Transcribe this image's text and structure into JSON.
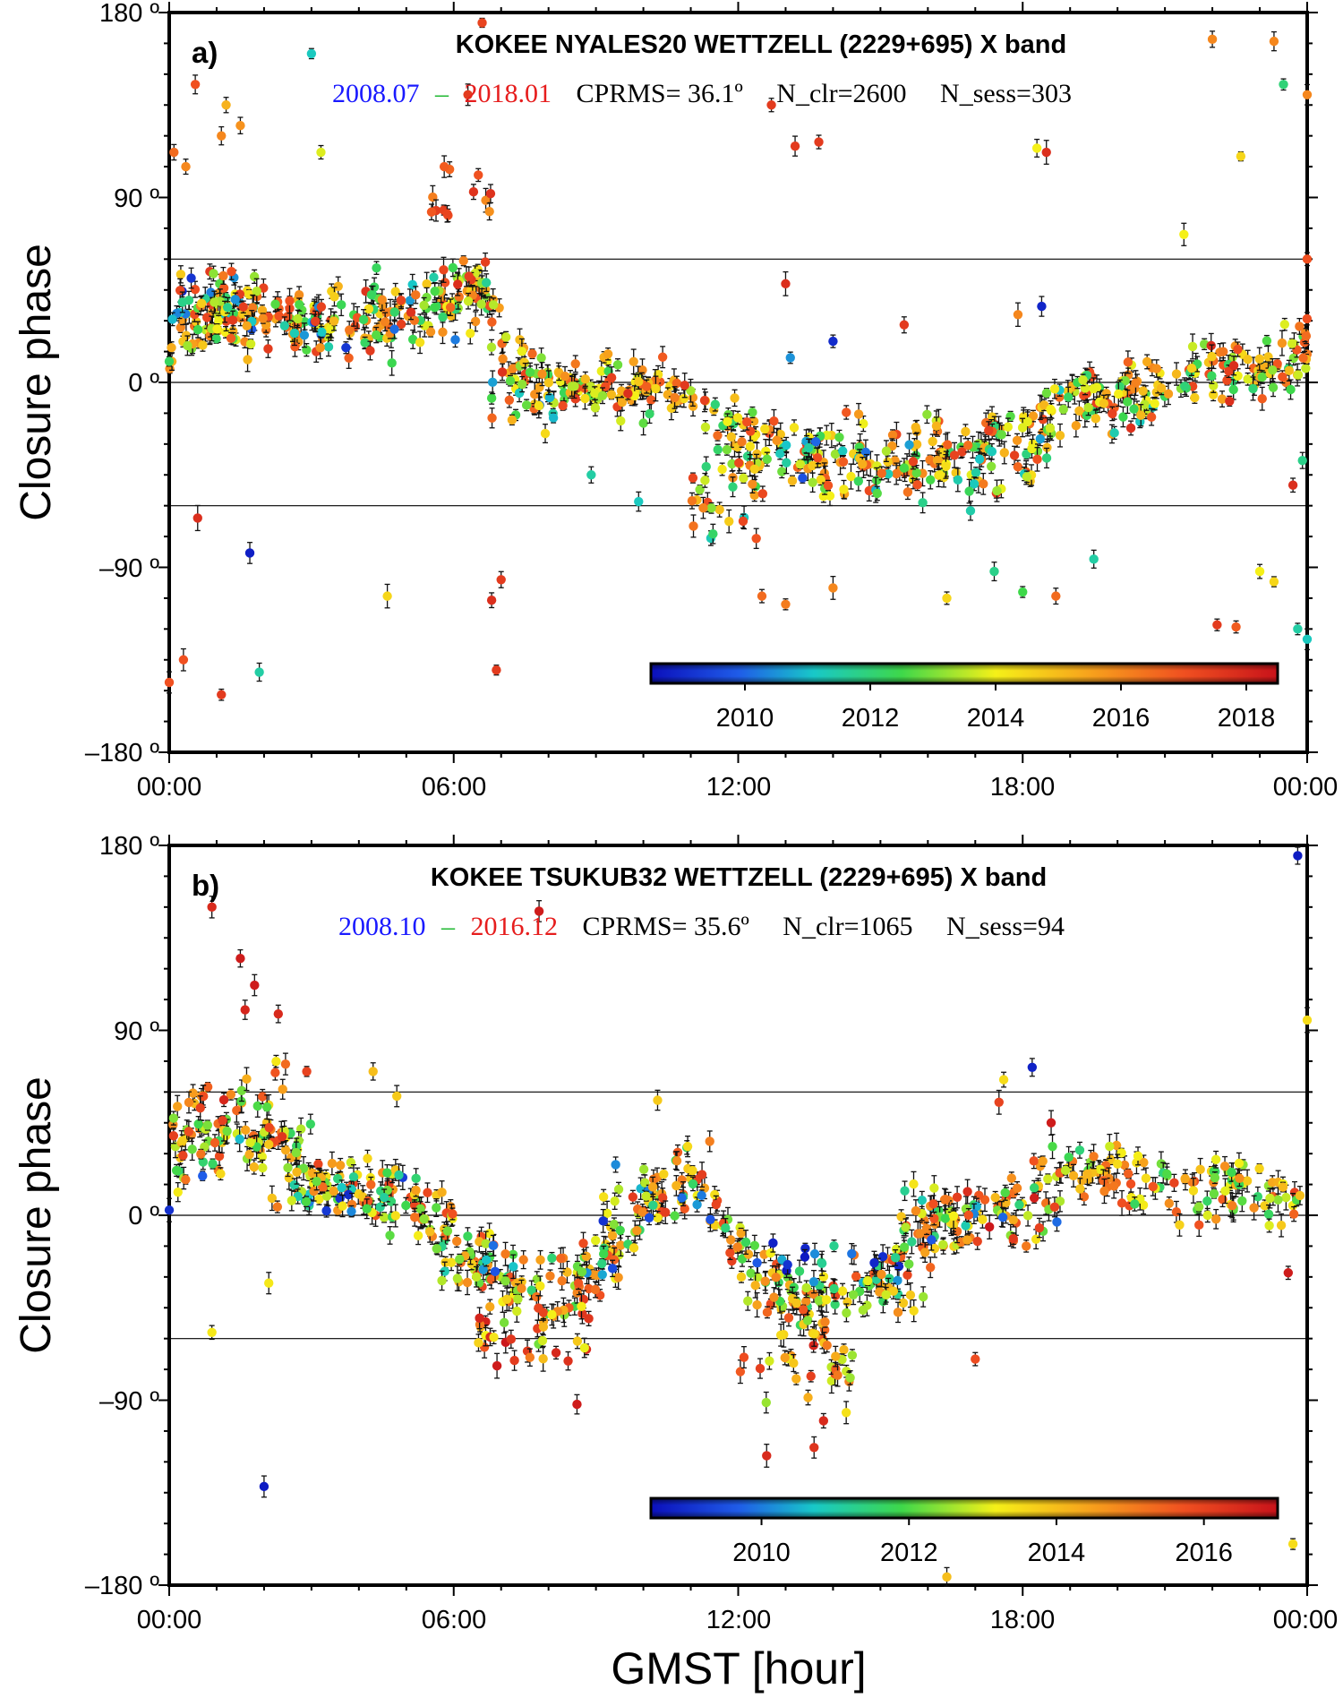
{
  "chart_data": [
    {
      "type": "scatter",
      "panel_label": "a)",
      "title": "KOKEE  NYALES20 WETTZELL (2229+695) X band",
      "date_start": "2008.07",
      "date_dash": "–",
      "date_end": "2018.01",
      "stats": {
        "cprms": "CPRMS= 36.1º",
        "n_clr": "N_clr=2600",
        "n_sess": "N_sess=303"
      },
      "ylabel": "Closure phase",
      "xlabel": "",
      "xlim": [
        0,
        24
      ],
      "ylim": [
        -180,
        180
      ],
      "x_ticks": [
        "00:00",
        "06:00",
        "12:00",
        "18:00",
        "00:00"
      ],
      "y_ticks": [
        "180 º",
        "90 º",
        "0 º",
        "–90 º",
        "–180 º"
      ],
      "reference_lines": [
        60,
        0,
        -60
      ],
      "colorbar": {
        "range": [
          2008.5,
          2018.5
        ],
        "ticks": [
          "2010",
          "2012",
          "2014",
          "2016",
          "2018"
        ],
        "tick_values": [
          2010,
          2012,
          2014,
          2016,
          2018
        ]
      },
      "trend": [
        [
          0,
          22
        ],
        [
          1,
          32
        ],
        [
          2,
          33
        ],
        [
          3,
          30
        ],
        [
          4,
          26
        ],
        [
          5,
          28
        ],
        [
          6,
          40
        ],
        [
          6.6,
          45
        ],
        [
          7,
          24
        ],
        [
          7.5,
          6
        ],
        [
          8,
          -6
        ],
        [
          9,
          -4
        ],
        [
          10,
          -2
        ],
        [
          10.5,
          -4
        ],
        [
          11,
          -12
        ],
        [
          11.5,
          -24
        ],
        [
          12,
          -30
        ],
        [
          13,
          -34
        ],
        [
          14,
          -36
        ],
        [
          15,
          -36
        ],
        [
          16,
          -34
        ],
        [
          17,
          -30
        ],
        [
          18,
          -22
        ],
        [
          19,
          -12
        ],
        [
          20,
          -4
        ],
        [
          21,
          1
        ],
        [
          22,
          4
        ],
        [
          23,
          3
        ],
        [
          24,
          22
        ]
      ],
      "clusters": [
        {
          "x0": 0.0,
          "x1": 1.6,
          "y": 40,
          "spread": 25,
          "n": 40,
          "years": [
            2008.6,
            2017.8
          ]
        },
        {
          "x0": 1.6,
          "x1": 4.0,
          "y": 30,
          "spread": 18,
          "n": 36,
          "years": [
            2009.0,
            2017.6
          ]
        },
        {
          "x0": 4.0,
          "x1": 6.7,
          "y": 38,
          "spread": 24,
          "n": 36,
          "years": [
            2010.0,
            2017.8
          ]
        },
        {
          "x0": 5.5,
          "x1": 6.8,
          "y": 85,
          "spread": 22,
          "n": 12,
          "years": [
            2015.5,
            2017.9
          ]
        },
        {
          "x0": 6.8,
          "x1": 8.2,
          "y": -10,
          "spread": 20,
          "n": 20,
          "years": [
            2010.0,
            2017.9
          ]
        },
        {
          "x0": 8.2,
          "x1": 11.0,
          "y": -4,
          "spread": 10,
          "n": 36,
          "years": [
            2013.0,
            2018.0
          ]
        },
        {
          "x0": 11.0,
          "x1": 12.8,
          "y": -55,
          "spread": 28,
          "n": 30,
          "years": [
            2011.0,
            2017.5
          ]
        },
        {
          "x0": 12.8,
          "x1": 16.0,
          "y": -40,
          "spread": 20,
          "n": 40,
          "years": [
            2009.5,
            2017.8
          ]
        },
        {
          "x0": 16.0,
          "x1": 18.5,
          "y": -45,
          "spread": 22,
          "n": 34,
          "years": [
            2010.0,
            2017.8
          ]
        },
        {
          "x0": 18.5,
          "x1": 21.0,
          "y": -10,
          "spread": 16,
          "n": 24,
          "years": [
            2011.0,
            2017.8
          ]
        },
        {
          "x0": 21.5,
          "x1": 24.0,
          "y": 8,
          "spread": 18,
          "n": 26,
          "years": [
            2012.0,
            2017.9
          ]
        }
      ],
      "outliers": [
        [
          0.1,
          112,
          2016.5
        ],
        [
          0.35,
          105,
          2016.0
        ],
        [
          0.55,
          145,
          2017.0
        ],
        [
          1.1,
          120,
          2016.0
        ],
        [
          1.2,
          135,
          2015.2
        ],
        [
          1.5,
          125,
          2015.8
        ],
        [
          3.0,
          160,
          2011.2
        ],
        [
          3.2,
          112,
          2013.8
        ],
        [
          6.6,
          175,
          2017.3
        ],
        [
          6.3,
          140,
          2017.5
        ],
        [
          5.8,
          105,
          2016.8
        ],
        [
          12.7,
          135,
          2017.5
        ],
        [
          13.2,
          115,
          2017.5
        ],
        [
          13.7,
          117,
          2017.5
        ],
        [
          18.5,
          112,
          2017.8
        ],
        [
          18.3,
          114,
          2014.0
        ],
        [
          21.4,
          72,
          2014.0
        ],
        [
          22.0,
          167,
          2016.0
        ],
        [
          22.6,
          110,
          2014.5
        ],
        [
          23.3,
          166,
          2016.0
        ],
        [
          23.5,
          145,
          2012.0
        ],
        [
          0.0,
          -146,
          2017.0
        ],
        [
          0.3,
          -135,
          2017.0
        ],
        [
          1.1,
          -152,
          2017.5
        ],
        [
          1.9,
          -141,
          2011.5
        ],
        [
          1.7,
          -83,
          2008.8
        ],
        [
          0.6,
          -66,
          2017.8
        ],
        [
          4.6,
          -104,
          2014.5
        ],
        [
          6.9,
          -140,
          2017.5
        ],
        [
          6.8,
          -106,
          2017.8
        ],
        [
          7.0,
          -96,
          2017.5
        ],
        [
          8.9,
          -45,
          2011.5
        ],
        [
          9.9,
          -58,
          2011.2
        ],
        [
          12.5,
          -104,
          2016.5
        ],
        [
          13.0,
          -108,
          2016.2
        ],
        [
          14.0,
          -100,
          2016.0
        ],
        [
          16.4,
          -105,
          2014.5
        ],
        [
          17.4,
          -92,
          2011.8
        ],
        [
          18.0,
          -102,
          2012.5
        ],
        [
          18.7,
          -104,
          2016.5
        ],
        [
          19.5,
          -86,
          2011.5
        ],
        [
          22.1,
          -118,
          2017.5
        ],
        [
          22.5,
          -119,
          2016.8
        ],
        [
          23.0,
          -92,
          2014.0
        ],
        [
          23.3,
          -97,
          2014.5
        ],
        [
          23.8,
          -120,
          2011.5
        ],
        [
          24.0,
          -125,
          2011.2
        ],
        [
          23.7,
          -50,
          2017.8
        ],
        [
          23.9,
          -38,
          2011.8
        ],
        [
          24.0,
          140,
          2016.0
        ],
        [
          24.0,
          60,
          2017.0
        ],
        [
          15.5,
          28,
          2017.5
        ],
        [
          14.0,
          20,
          2009.0
        ],
        [
          13.1,
          12,
          2010.5
        ],
        [
          18.4,
          37,
          2008.9
        ],
        [
          17.9,
          33,
          2016.0
        ],
        [
          13.0,
          48,
          2017.8
        ]
      ],
      "colorbar_pos": {
        "x0": 13.4,
        "x1": 24.0,
        "y": -142
      }
    },
    {
      "type": "scatter",
      "panel_label": "b)",
      "title": "KOKEE  TSUKUB32 WETTZELL (2229+695) X band",
      "date_start": "2008.10",
      "date_dash": "–",
      "date_end": "2016.12",
      "stats": {
        "cprms": "CPRMS= 35.6º",
        "n_clr": "N_clr=1065",
        "n_sess": "N_sess=94"
      },
      "ylabel": "Closure phase",
      "xlabel": "GMST [hour]",
      "xlim": [
        0,
        24
      ],
      "ylim": [
        -180,
        180
      ],
      "x_ticks": [
        "00:00",
        "06:00",
        "12:00",
        "18:00",
        "00:00"
      ],
      "y_ticks": [
        "180 º",
        "90 º",
        "0 º",
        "–90 º",
        "–180 º"
      ],
      "reference_lines": [
        60,
        0,
        -60
      ],
      "colorbar": {
        "range": [
          2008.5,
          2017.0
        ],
        "ticks": [
          "2010",
          "2012",
          "2014",
          "2016"
        ],
        "tick_values": [
          2010,
          2012,
          2014,
          2016
        ]
      },
      "trend": [
        [
          0,
          35
        ],
        [
          1,
          40
        ],
        [
          2,
          38
        ],
        [
          3,
          25
        ],
        [
          4,
          15
        ],
        [
          5,
          5
        ],
        [
          6,
          -10
        ],
        [
          7,
          -35
        ],
        [
          8,
          -40
        ],
        [
          9,
          -25
        ],
        [
          10,
          5
        ],
        [
          11,
          20
        ],
        [
          11.5,
          5
        ],
        [
          12,
          -15
        ],
        [
          13,
          -40
        ],
        [
          14,
          -45
        ],
        [
          15,
          -30
        ],
        [
          16,
          -10
        ],
        [
          17,
          0
        ],
        [
          18,
          10
        ],
        [
          18.8,
          20
        ],
        [
          24,
          10
        ]
      ],
      "clusters": [
        {
          "x0": 0.0,
          "x1": 2.5,
          "y": 55,
          "spread": 30,
          "n": 30,
          "years": [
            2012.0,
            2016.9
          ]
        },
        {
          "x0": 0.0,
          "x1": 3.0,
          "y": 20,
          "spread": 20,
          "n": 20,
          "years": [
            2009.0,
            2015.5
          ]
        },
        {
          "x0": 2.5,
          "x1": 5.5,
          "y": 10,
          "spread": 14,
          "n": 30,
          "years": [
            2008.7,
            2016.0
          ]
        },
        {
          "x0": 6.5,
          "x1": 9.0,
          "y": -60,
          "spread": 25,
          "n": 30,
          "years": [
            2012.0,
            2016.9
          ]
        },
        {
          "x0": 5.5,
          "x1": 9.5,
          "y": -25,
          "spread": 15,
          "n": 30,
          "years": [
            2009.0,
            2015.5
          ]
        },
        {
          "x0": 9.0,
          "x1": 11.5,
          "y": 12,
          "spread": 16,
          "n": 26,
          "years": [
            2008.8,
            2016.9
          ]
        },
        {
          "x0": 12.0,
          "x1": 14.5,
          "y": -75,
          "spread": 30,
          "n": 30,
          "years": [
            2012.5,
            2016.9
          ]
        },
        {
          "x0": 12.0,
          "x1": 15.5,
          "y": -25,
          "spread": 15,
          "n": 26,
          "years": [
            2008.6,
            2012.0
          ]
        },
        {
          "x0": 13.0,
          "x1": 16.0,
          "y": -40,
          "spread": 18,
          "n": 22,
          "years": [
            2012.0,
            2015.0
          ]
        },
        {
          "x0": 15.5,
          "x1": 18.8,
          "y": 0,
          "spread": 18,
          "n": 40,
          "years": [
            2009.0,
            2016.9
          ]
        }
      ],
      "outliers": [
        [
          0.9,
          150,
          2016.5
        ],
        [
          1.5,
          125,
          2016.8
        ],
        [
          1.8,
          112,
          2016.8
        ],
        [
          1.6,
          100,
          2016.6
        ],
        [
          2.3,
          98,
          2016.5
        ],
        [
          2.9,
          70,
          2016.0
        ],
        [
          4.3,
          70,
          2014.0
        ],
        [
          4.8,
          58,
          2013.8
        ],
        [
          7.8,
          148,
          2016.8
        ],
        [
          10.3,
          56,
          2013.8
        ],
        [
          11.4,
          36,
          2015.0
        ],
        [
          17.6,
          66,
          2013.5
        ],
        [
          18.2,
          72,
          2008.8
        ],
        [
          17.5,
          55,
          2016.0
        ],
        [
          18.6,
          45,
          2016.8
        ],
        [
          0.9,
          -57,
          2013.3
        ],
        [
          2.0,
          -132,
          2008.7
        ],
        [
          2.1,
          -33,
          2013.3
        ],
        [
          8.6,
          -92,
          2016.8
        ],
        [
          12.6,
          -117,
          2016.5
        ],
        [
          13.6,
          -113,
          2016.3
        ],
        [
          13.8,
          -100,
          2016.5
        ],
        [
          16.4,
          -176,
          2014.0
        ],
        [
          17.0,
          -70,
          2015.8
        ],
        [
          21.9,
          0,
          2013.0
        ],
        [
          23.2,
          -5,
          2013.0
        ],
        [
          23.6,
          -28,
          2016.8
        ],
        [
          23.8,
          175,
          2008.7
        ],
        [
          24.0,
          95,
          2013.5
        ],
        [
          23.7,
          -160,
          2013.5
        ],
        [
          21.6,
          12,
          2013.5
        ],
        [
          20.6,
          18,
          2013.5
        ],
        [
          20.0,
          25,
          2013.5
        ]
      ],
      "colorbar_pos": {
        "x0": 13.4,
        "x1": 24.0,
        "y": -144
      }
    }
  ]
}
